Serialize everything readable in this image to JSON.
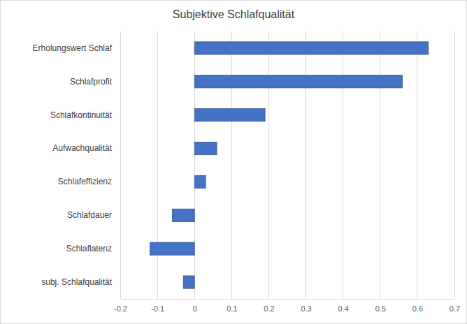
{
  "chart_data": {
    "type": "bar",
    "orientation": "horizontal",
    "title": "Subjektive Schlafqualität",
    "categories": [
      "Erholungswert Schlaf",
      "Schlafprofit",
      "Schlafkontinuität",
      "Aufwachqualität",
      "Schlafeffizienz",
      "Schlafdauer",
      "Schlaflatenz",
      "subj. Schlafqualität"
    ],
    "values": [
      0.63,
      0.56,
      0.19,
      0.06,
      0.03,
      -0.06,
      -0.12,
      -0.03
    ],
    "color": "#4472c4",
    "xlim": [
      -0.2,
      0.7
    ],
    "xticks": [
      -0.2,
      -0.1,
      0,
      0.1,
      0.2,
      0.3,
      0.4,
      0.5,
      0.6,
      0.7
    ],
    "grid": true
  }
}
